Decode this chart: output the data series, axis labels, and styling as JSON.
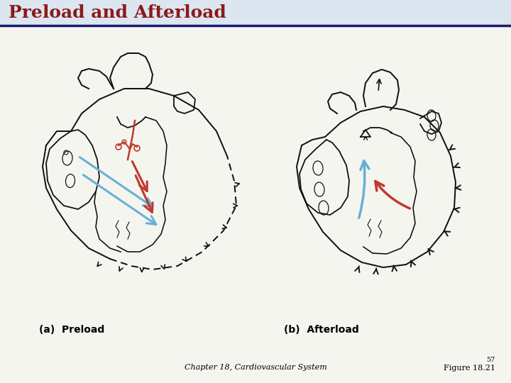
{
  "title": "Preload and Afterload",
  "title_color": "#8B1A1A",
  "title_fontsize": 18,
  "title_bar_color": "#1a1a6e",
  "bg_color": "#f5f5f0",
  "label_a": "(a)  Preload",
  "label_b": "(b)  Afterload",
  "label_fontsize": 10,
  "footer_center": "Chapter 18, Cardiovascular System",
  "footer_right_line1": "57",
  "footer_right_line2": "Figure 18.21",
  "footer_fontsize": 8,
  "blue_color": "#6ab0d4",
  "red_color": "#c0392b",
  "black_color": "#111111",
  "lw": 1.3
}
